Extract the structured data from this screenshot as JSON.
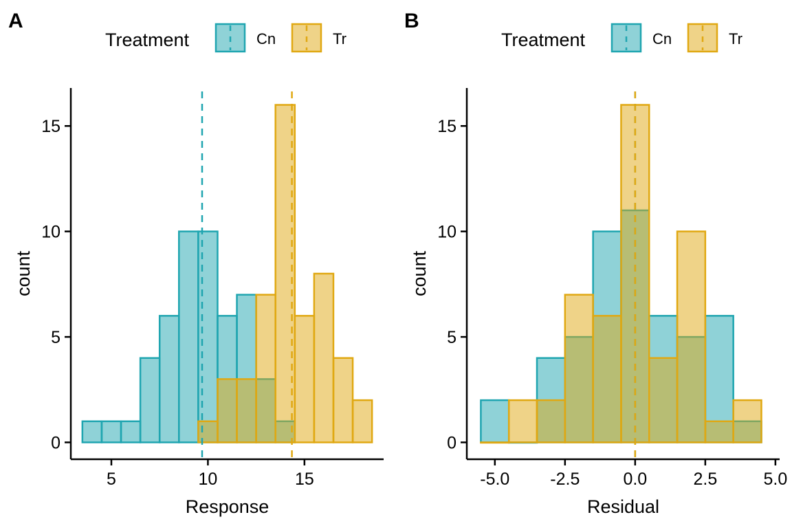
{
  "colors": {
    "Cn": "#1fa5b0",
    "Tr": "#e0a812"
  },
  "chart_data": [
    {
      "tag": "A",
      "type": "histogram",
      "xlabel": "Response",
      "ylabel": "count",
      "legend_title": "Treatment",
      "legend_position": "top",
      "grid": false,
      "xlim": [
        2.9,
        19.1
      ],
      "ylim": [
        -0.8,
        16.8
      ],
      "xticks": [
        5,
        10,
        15
      ],
      "xtick_labels": [
        "5",
        "10",
        "15"
      ],
      "yticks": [
        0,
        5,
        10,
        15
      ],
      "ytick_labels": [
        "0",
        "5",
        "10",
        "15"
      ],
      "bin_width": 1,
      "series": [
        {
          "name": "Cn",
          "mean": 9.7,
          "bin_centers": [
            4,
            5,
            6,
            7,
            8,
            9,
            10,
            11,
            12,
            13,
            14
          ],
          "counts": [
            1,
            1,
            1,
            4,
            6,
            10,
            10,
            6,
            7,
            3,
            1
          ]
        },
        {
          "name": "Tr",
          "mean": 14.35,
          "bin_centers": [
            10,
            11,
            12,
            13,
            14,
            15,
            16,
            17,
            18
          ],
          "counts": [
            1,
            3,
            3,
            7,
            16,
            6,
            8,
            4,
            2
          ]
        }
      ]
    },
    {
      "tag": "B",
      "type": "histogram",
      "xlabel": "Residual",
      "ylabel": "count",
      "legend_title": "Treatment",
      "legend_position": "top",
      "grid": false,
      "xlim": [
        -6,
        5.15
      ],
      "ylim": [
        -0.8,
        16.8
      ],
      "xticks": [
        -5,
        -2.5,
        0,
        2.5,
        5
      ],
      "xtick_labels": [
        "-5.0",
        "-2.5",
        "0.0",
        "2.5",
        "5.0"
      ],
      "yticks": [
        0,
        5,
        10,
        15
      ],
      "ytick_labels": [
        "0",
        "5",
        "10",
        "15"
      ],
      "bin_width": 1,
      "series": [
        {
          "name": "Cn",
          "mean": 0,
          "bin_centers": [
            -5,
            -4,
            -3,
            -2,
            -1,
            0,
            1,
            2,
            3,
            4
          ],
          "counts": [
            2,
            0,
            4,
            5,
            10,
            11,
            6,
            5,
            6,
            1
          ]
        },
        {
          "name": "Tr",
          "mean": 0,
          "bin_centers": [
            -5,
            -4,
            -3,
            -2,
            -1,
            0,
            1,
            2,
            3,
            4
          ],
          "counts": [
            0,
            2,
            2,
            7,
            6,
            16,
            4,
            10,
            1,
            2
          ]
        }
      ]
    }
  ]
}
